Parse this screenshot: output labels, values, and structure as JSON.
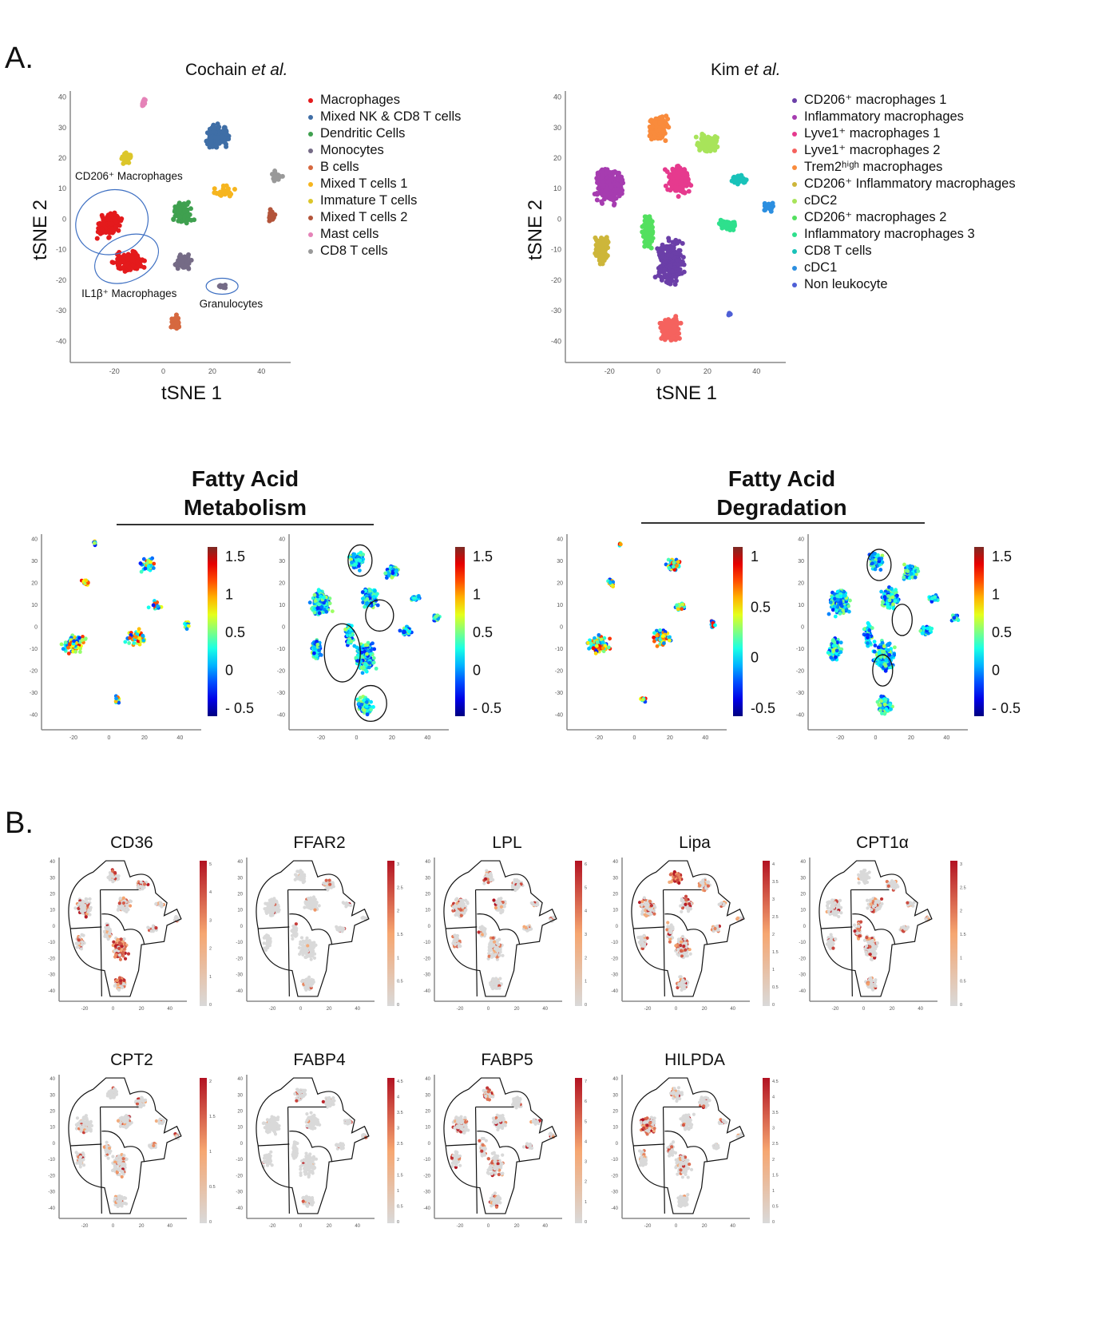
{
  "panels": {
    "A": {
      "label": "A."
    },
    "B": {
      "label": "B."
    }
  },
  "cochain": {
    "title_prefix": "Cochain ",
    "title_italic": "et al.",
    "xlabel": "tSNE 1",
    "ylabel": "tSNE 2",
    "annotations": [
      "CD206⁺ Macrophages",
      "IL1β⁺ Macrophages",
      "Granulocytes"
    ],
    "legend": [
      {
        "label": "Macrophages",
        "color": "#e41a1c"
      },
      {
        "label": "Mixed NK & CD8 T cells",
        "color": "#3f6ea6"
      },
      {
        "label": "Dendritic Cells",
        "color": "#3fa04f"
      },
      {
        "label": "Monocytes",
        "color": "#756b86"
      },
      {
        "label": "B cells",
        "color": "#d6683f"
      },
      {
        "label": "Mixed T cells 1",
        "color": "#f6b51e"
      },
      {
        "label": "Immature T cells",
        "color": "#dcc62a"
      },
      {
        "label": "Mixed T cells 2",
        "color": "#b3543a"
      },
      {
        "label": "Mast cells",
        "color": "#e583b8"
      },
      {
        "label": "CD8 T cells",
        "color": "#999999"
      }
    ]
  },
  "kim": {
    "title_prefix": "Kim ",
    "title_italic": "et al.",
    "xlabel": "tSNE 1",
    "ylabel": "tSNE 2",
    "legend": [
      {
        "label": "CD206⁺ macrophages 1",
        "color": "#6b3fa8"
      },
      {
        "label": "Inflammatory macrophages",
        "color": "#a63cb0"
      },
      {
        "label": "Lyve1⁺ macrophages 1",
        "color": "#e63a8e"
      },
      {
        "label": "Lyve1⁺ macrophages 2",
        "color": "#f5625e"
      },
      {
        "label": "Trem2ʰⁱᵍʰ macrophages",
        "color": "#f98b3c"
      },
      {
        "label": "CD206⁺ Inflammatory macrophages",
        "color": "#cdb63a"
      },
      {
        "label": "cDC2",
        "color": "#a8e45a"
      },
      {
        "label": "CD206⁺ macrophages 2",
        "color": "#53e05f"
      },
      {
        "label": "Inflammatory macrophages 3",
        "color": "#2ee08d"
      },
      {
        "label": "CD8 T cells",
        "color": "#19c2b9"
      },
      {
        "label": "cDC1",
        "color": "#2c8fe0"
      },
      {
        "label": "Non leukocyte",
        "color": "#4e5fd6"
      }
    ]
  },
  "fatty_acid": {
    "metabolism_title": [
      "Fatty Acid",
      "Metabolism"
    ],
    "degradation_title": [
      "Fatty Acid",
      "Degradation"
    ],
    "colorbars": [
      {
        "ticks": [
          "1.5",
          "1",
          "0.5",
          "0",
          "- 0.5"
        ]
      },
      {
        "ticks": [
          "1.5",
          "1",
          "0.5",
          "0",
          "- 0.5"
        ]
      },
      {
        "ticks": [
          "1",
          "0.5",
          "0",
          "-0.5"
        ]
      },
      {
        "ticks": [
          "1.5",
          "1",
          "0.5",
          "0",
          "- 0.5"
        ]
      }
    ]
  },
  "genes": [
    {
      "name": "CD36",
      "ticks": [
        "5",
        "4",
        "3",
        "2",
        "1",
        "0"
      ]
    },
    {
      "name": "FFAR2",
      "ticks": [
        "3",
        "2.5",
        "2",
        "1.5",
        "1",
        "0.5",
        "0"
      ]
    },
    {
      "name": "LPL",
      "ticks": [
        "6",
        "5",
        "4",
        "3",
        "2",
        "1",
        "0"
      ]
    },
    {
      "name": "Lipa",
      "ticks": [
        "4",
        "3.5",
        "3",
        "2.5",
        "2",
        "1.5",
        "1",
        "0.5",
        "0"
      ]
    },
    {
      "name": "CPT1α",
      "ticks": [
        "3",
        "2.5",
        "2",
        "1.5",
        "1",
        "0.5",
        "0"
      ]
    },
    {
      "name": "CPT2",
      "ticks": [
        "2",
        "1.5",
        "1",
        "0.5",
        "0"
      ]
    },
    {
      "name": "FABP4",
      "ticks": [
        "4.5",
        "4",
        "3.5",
        "3",
        "2.5",
        "2",
        "1.5",
        "1",
        "0.5",
        "0"
      ]
    },
    {
      "name": "FABP5",
      "ticks": [
        "7",
        "6",
        "5",
        "4",
        "3",
        "2",
        "1",
        "0"
      ]
    },
    {
      "name": "HILPDA",
      "ticks": [
        "4.5",
        "4",
        "3.5",
        "3",
        "2.5",
        "2",
        "1.5",
        "1",
        "0.5",
        "0"
      ]
    }
  ],
  "axes": {
    "y_ticks": [
      "40",
      "30",
      "20",
      "10",
      "0",
      "-10",
      "-20",
      "-30",
      "-40"
    ],
    "x_ticks": [
      "-20",
      "0",
      "20",
      "40"
    ]
  },
  "chart_data": [
    {
      "type": "scatter",
      "title": "Cochain et al.",
      "xlabel": "tSNE 1",
      "ylabel": "tSNE 2",
      "xlim": [
        -38,
        52
      ],
      "ylim": [
        -47,
        42
      ],
      "legend": "right",
      "series": [
        {
          "name": "Macrophages",
          "center": [
            -18,
            -6
          ]
        },
        {
          "name": "Mixed NK & CD8 T cells",
          "center": [
            22,
            28
          ]
        },
        {
          "name": "Dendritic Cells",
          "center": [
            7,
            2
          ]
        },
        {
          "name": "Monocytes",
          "center": [
            8,
            -14
          ]
        },
        {
          "name": "B cells",
          "center": [
            5,
            -35
          ]
        },
        {
          "name": "Mixed T cells 1",
          "center": [
            26,
            9
          ]
        },
        {
          "name": "Immature T cells",
          "center": [
            -14,
            20
          ]
        },
        {
          "name": "Mixed T cells 2",
          "center": [
            43,
            2
          ]
        },
        {
          "name": "Mast cells",
          "center": [
            -8,
            38
          ]
        },
        {
          "name": "CD8 T cells",
          "center": [
            46,
            14
          ]
        },
        {
          "name": "Granulocytes",
          "center": [
            24,
            -22
          ]
        }
      ]
    },
    {
      "type": "scatter",
      "title": "Kim et al.",
      "xlabel": "tSNE 1",
      "ylabel": "tSNE 2",
      "xlim": [
        -38,
        52
      ],
      "ylim": [
        -47,
        42
      ],
      "legend": "right",
      "series": [
        {
          "name": "CD206+ macrophages 1",
          "center": [
            5,
            -14
          ]
        },
        {
          "name": "Inflammatory macrophages",
          "center": [
            -20,
            10
          ]
        },
        {
          "name": "Lyve1+ macrophages 1",
          "center": [
            8,
            12
          ]
        },
        {
          "name": "Lyve1+ macrophages 2",
          "center": [
            5,
            -36
          ]
        },
        {
          "name": "Trem2high macrophages",
          "center": [
            0,
            30
          ]
        },
        {
          "name": "CD206+ Inflammatory macrophages",
          "center": [
            -23,
            -10
          ]
        },
        {
          "name": "cDC2",
          "center": [
            20,
            25
          ]
        },
        {
          "name": "CD206+ macrophages 2",
          "center": [
            -5,
            -4
          ]
        },
        {
          "name": "Inflammatory macrophages 3",
          "center": [
            28,
            -2
          ]
        },
        {
          "name": "CD8 T cells",
          "center": [
            33,
            13
          ]
        },
        {
          "name": "cDC1",
          "center": [
            45,
            4
          ]
        },
        {
          "name": "Non leukocyte",
          "center": [
            29,
            -31
          ]
        }
      ]
    }
  ]
}
